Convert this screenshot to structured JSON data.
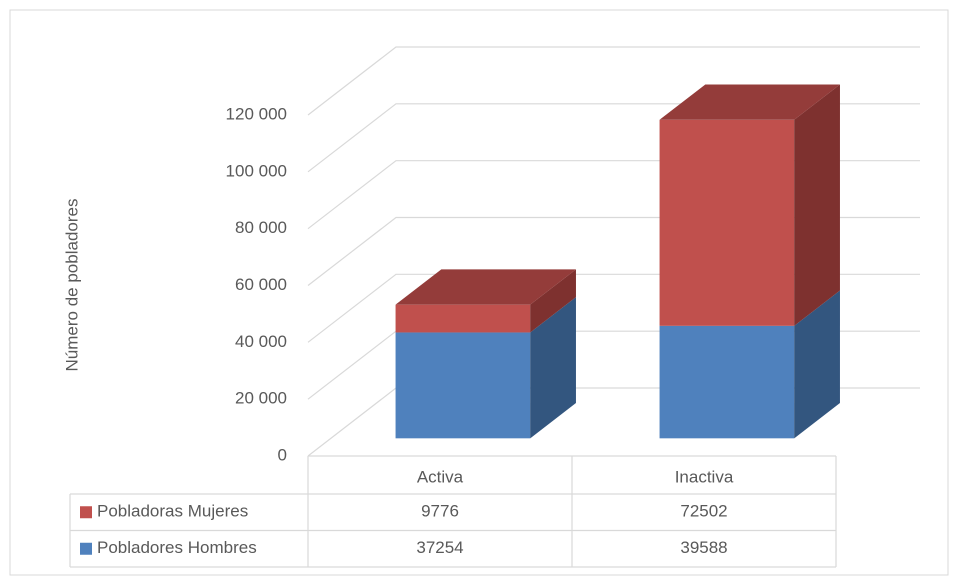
{
  "chart_data": {
    "type": "bar3d_stacked",
    "y_label": "Número de pobladores",
    "categories": [
      "Activa",
      "Inactiva"
    ],
    "series": [
      {
        "name": "Pobladoras Mujeres",
        "color": "#c0504d",
        "side": "#7e312f",
        "top": "#943c3a",
        "values": [
          9776,
          72502
        ]
      },
      {
        "name": "Pobladores Hombres",
        "color": "#4f81bd",
        "side": "#33567f",
        "top": "#3c6595",
        "values": [
          37254,
          39588
        ]
      }
    ],
    "ylim": [
      0,
      120000
    ],
    "yticks": [
      0,
      {
        "value": 20000,
        "label": "20 000"
      },
      {
        "value": 40000,
        "label": "40 000"
      },
      {
        "value": 60000,
        "label": "60 000"
      },
      {
        "value": 80000,
        "label": "80 000"
      },
      {
        "value": 100000,
        "label": "100 000"
      },
      {
        "value": 120000,
        "label": "120 000"
      }
    ],
    "grid": true
  }
}
